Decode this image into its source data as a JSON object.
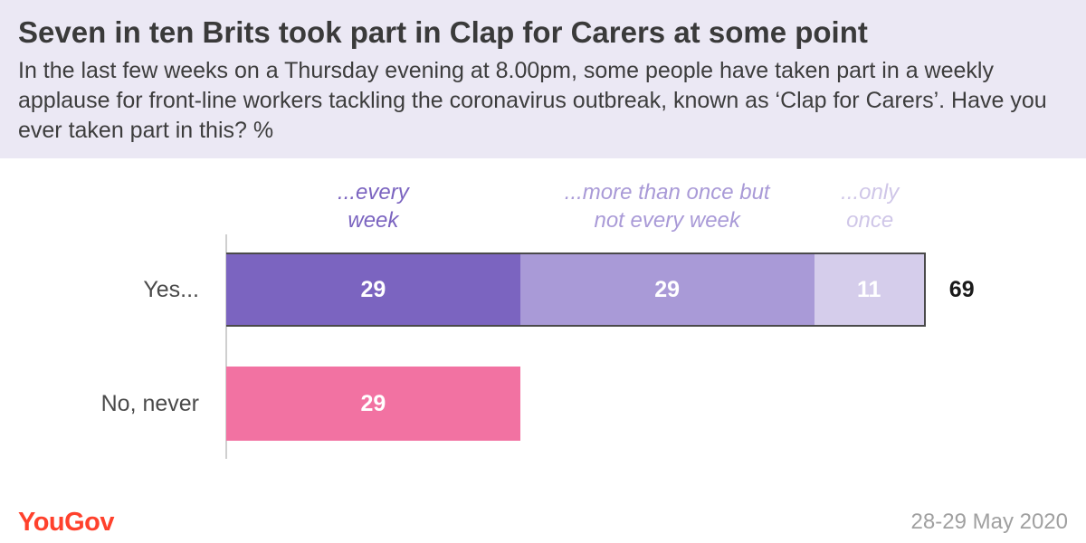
{
  "title": "Seven in ten Brits took part in Clap for Carers at some point",
  "subtitle": "In the last few weeks on a Thursday evening at 8.00pm, some people have taken part in a weekly applause for front-line workers tackling the coronavirus outbreak, known as ‘Clap for Carers’. Have you ever taken part in this? %",
  "brand": "YouGov",
  "date": "28-29 May 2020",
  "colors": {
    "every_week": "#7b64c0",
    "more_than_once": "#a99ad7",
    "only_once": "#d5cdeb",
    "no_never": "#f272a2"
  },
  "chart_data": {
    "type": "bar",
    "orientation": "horizontal",
    "stacked": true,
    "xlim": [
      0,
      100
    ],
    "categories": [
      "Yes...",
      "No, never"
    ],
    "segment_labels": {
      "every_week": [
        "...every",
        "week"
      ],
      "more_than_once": [
        "...more than once but",
        "not every week"
      ],
      "only_once": [
        "...only",
        "once"
      ]
    },
    "rows": [
      {
        "label": "Yes...",
        "total": 69,
        "segments": [
          {
            "key": "every_week",
            "value": 29
          },
          {
            "key": "more_than_once",
            "value": 29
          },
          {
            "key": "only_once",
            "value": 11
          }
        ]
      },
      {
        "label": "No, never",
        "segments": [
          {
            "key": "no_never",
            "value": 29
          }
        ]
      }
    ]
  }
}
